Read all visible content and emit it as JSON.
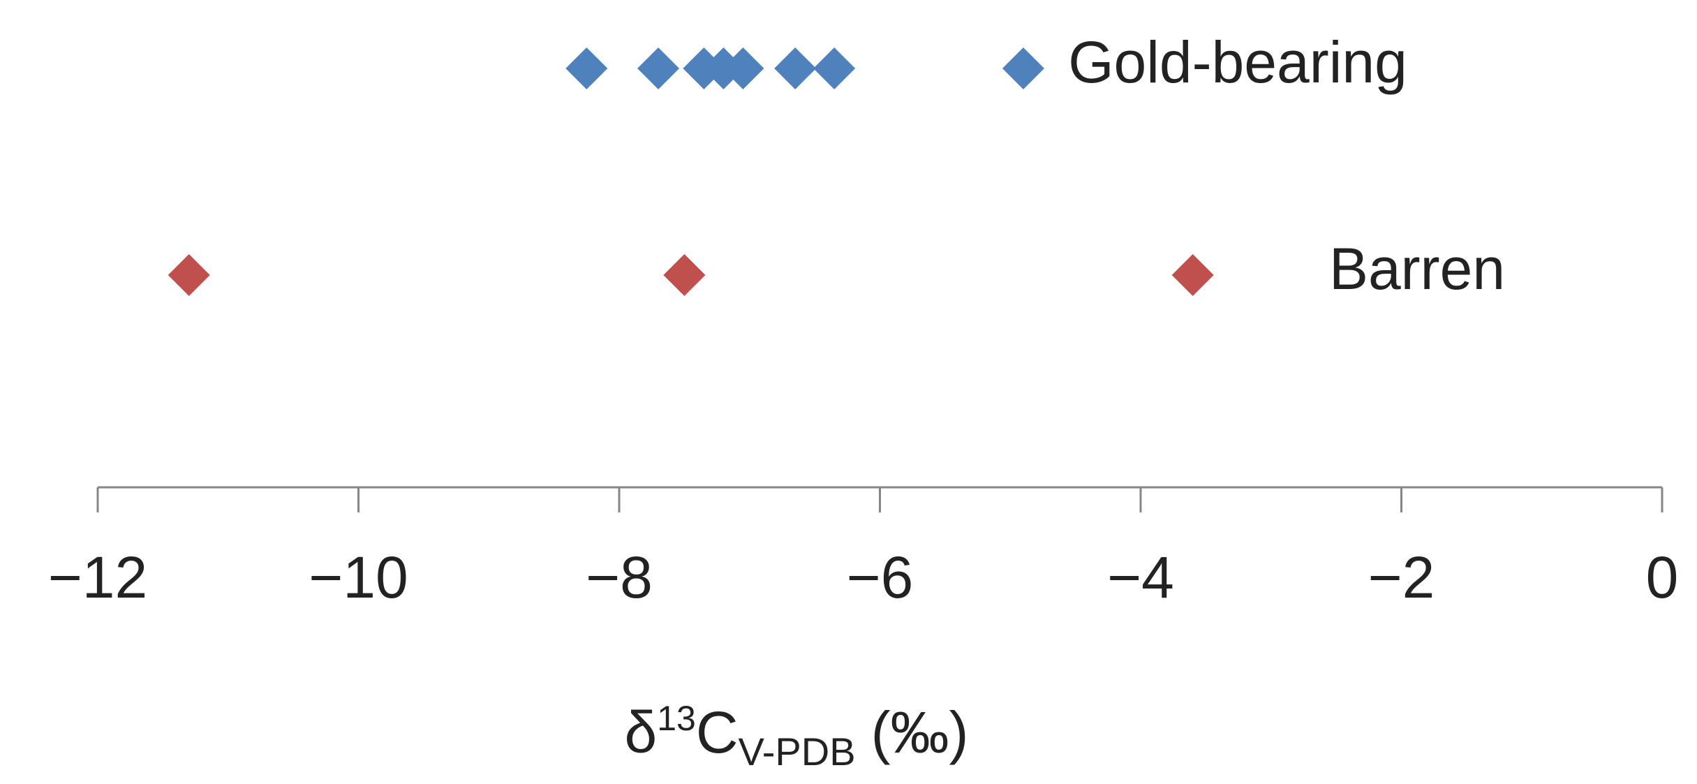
{
  "chart_data": {
    "type": "scatter",
    "xlabel": {
      "base": "δ",
      "superscript": "13",
      "symbol": "C",
      "subscript": "V-PDB",
      "unit": "(‰)"
    },
    "xlim": [
      -12,
      0
    ],
    "xticks": [
      -12,
      -10,
      -8,
      -6,
      -4,
      -2,
      0
    ],
    "xtick_labels": [
      "−12",
      "−10",
      "−8",
      "−6",
      "−4",
      "−2",
      "0"
    ],
    "grid": false,
    "marker": "diamond",
    "series": [
      {
        "name": "Gold-bearing",
        "color": "#4F81BD",
        "x": [
          -8.25,
          -7.7,
          -7.35,
          -7.2,
          -7.05,
          -6.65,
          -6.35,
          -4.9
        ]
      },
      {
        "name": "Barren",
        "color": "#C0504D",
        "x": [
          -11.3,
          -7.5,
          -3.6
        ]
      }
    ]
  }
}
